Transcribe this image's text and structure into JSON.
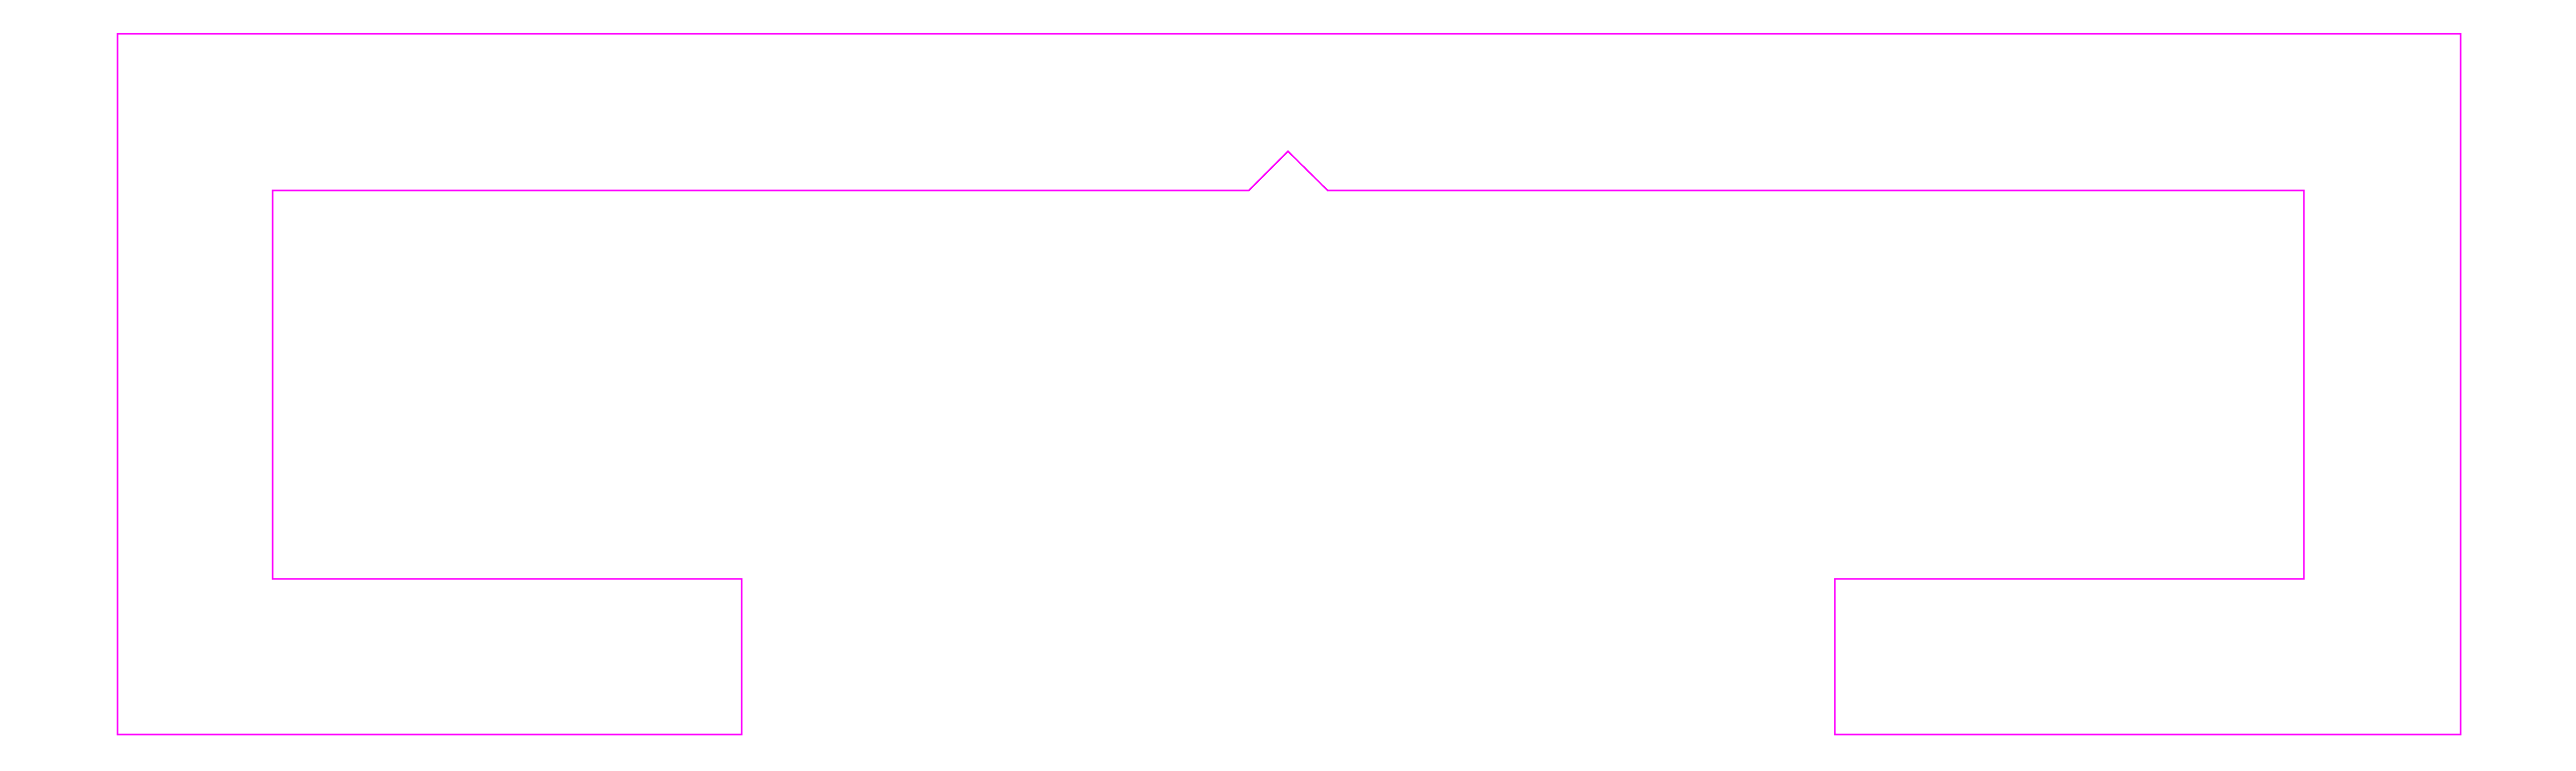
{
  "diagram": {
    "shape": "outline",
    "stroke_color": "#ff00ff",
    "background_color": "#ffffff"
  }
}
